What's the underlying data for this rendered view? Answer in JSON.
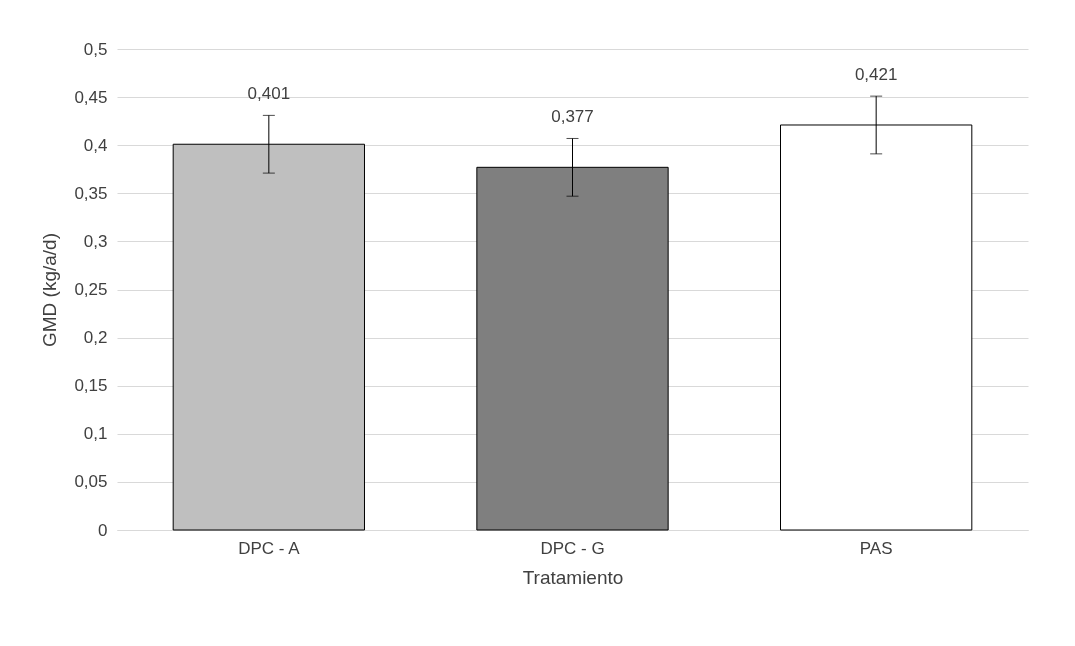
{
  "chart_data": {
    "type": "bar",
    "xlabel": "Tratamiento",
    "ylabel": "GMD (kg/a/d)",
    "categories": [
      "DPC - A",
      "DPC - G",
      "PAS"
    ],
    "values": [
      0.401,
      0.377,
      0.421
    ],
    "colors": [
      "#bfbfbf",
      "#7f7f7f",
      "#ffffff"
    ],
    "errors": [
      0.03,
      0.03,
      0.03
    ],
    "value_labels": [
      "0,401",
      "0,377",
      "0,421"
    ],
    "ylim": [
      0,
      0.5
    ],
    "yticks": [
      {
        "value": 0,
        "label": "0"
      },
      {
        "value": 0.05,
        "label": "0,05"
      },
      {
        "value": 0.1,
        "label": "0,1"
      },
      {
        "value": 0.15,
        "label": "0,15"
      },
      {
        "value": 0.2,
        "label": "0,2"
      },
      {
        "value": 0.25,
        "label": "0,25"
      },
      {
        "value": 0.3,
        "label": "0,3"
      },
      {
        "value": 0.35,
        "label": "0,35"
      },
      {
        "value": 0.4,
        "label": "0,4"
      },
      {
        "value": 0.45,
        "label": "0,45"
      },
      {
        "value": 0.5,
        "label": "0,5"
      }
    ],
    "grid": "y"
  }
}
